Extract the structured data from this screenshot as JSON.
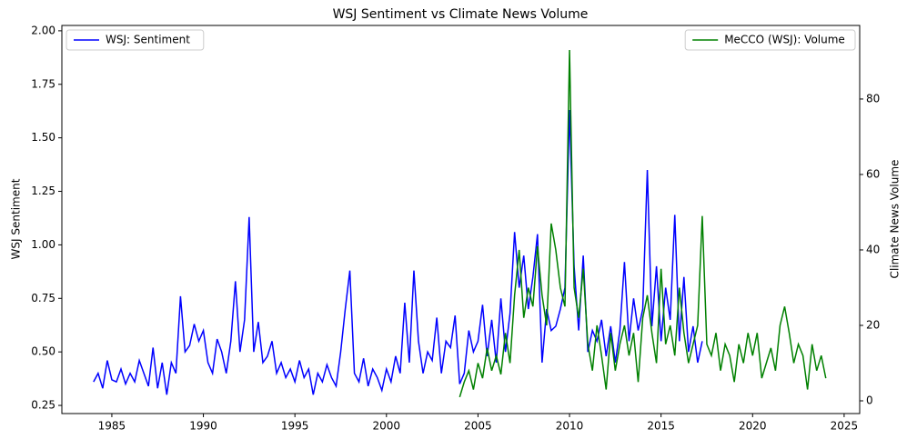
{
  "chart_data": {
    "type": "line",
    "title": "WSJ Sentiment vs Climate News Volume",
    "ylabel": "WSJ Sentiment",
    "y2label": "Climate News Volume",
    "xlim": [
      1982.27,
      2025.85
    ],
    "xticks": [
      1985,
      1990,
      1995,
      2000,
      2005,
      2010,
      2015,
      2020,
      2025
    ],
    "ylim": [
      0.212,
      2.025
    ],
    "yticks": [
      {
        "value": 0.25,
        "label": "0.25"
      },
      {
        "value": 0.5,
        "label": "0.50"
      },
      {
        "value": 0.75,
        "label": "0.75"
      },
      {
        "value": 1.0,
        "label": "1.00"
      },
      {
        "value": 1.25,
        "label": "1.25"
      },
      {
        "value": 1.5,
        "label": "1.50"
      },
      {
        "value": 1.75,
        "label": "1.75"
      },
      {
        "value": 2.0,
        "label": "2.00"
      }
    ],
    "y2lim": [
      -3.37,
      99.5
    ],
    "y2ticks": [
      0,
      20,
      40,
      60,
      80
    ],
    "legend": [
      "upper left",
      "upper right"
    ],
    "series": [
      {
        "name": "WSJ: Sentiment",
        "color": "#0000ff",
        "axis": "y",
        "x": [
          1984,
          1984.25,
          1984.5,
          1984.75,
          1985,
          1985.25,
          1985.5,
          1985.75,
          1986,
          1986.25,
          1986.5,
          1986.75,
          1987,
          1987.25,
          1987.5,
          1987.75,
          1988,
          1988.25,
          1988.5,
          1988.75,
          1989,
          1989.25,
          1989.5,
          1989.75,
          1990,
          1990.25,
          1990.5,
          1990.75,
          1991,
          1991.25,
          1991.5,
          1991.75,
          1992,
          1992.25,
          1992.5,
          1992.75,
          1993,
          1993.25,
          1993.5,
          1993.75,
          1994,
          1994.25,
          1994.5,
          1994.75,
          1995,
          1995.25,
          1995.5,
          1995.75,
          1996,
          1996.25,
          1996.5,
          1996.75,
          1997,
          1997.25,
          1997.5,
          1997.75,
          1998,
          1998.25,
          1998.5,
          1998.75,
          1999,
          1999.25,
          1999.5,
          1999.75,
          2000,
          2000.25,
          2000.5,
          2000.75,
          2001,
          2001.25,
          2001.5,
          2001.75,
          2002,
          2002.25,
          2002.5,
          2002.75,
          2003,
          2003.25,
          2003.5,
          2003.75,
          2004,
          2004.25,
          2004.5,
          2004.75,
          2005,
          2005.25,
          2005.5,
          2005.75,
          2006,
          2006.25,
          2006.5,
          2006.75,
          2007,
          2007.25,
          2007.5,
          2007.75,
          2008,
          2008.25,
          2008.5,
          2008.75,
          2009,
          2009.25,
          2009.5,
          2009.75,
          2010,
          2010.25,
          2010.5,
          2010.75,
          2011,
          2011.25,
          2011.5,
          2011.75,
          2012,
          2012.25,
          2012.5,
          2012.75,
          2013,
          2013.25,
          2013.5,
          2013.75,
          2014,
          2014.25,
          2014.5,
          2014.75,
          2015,
          2015.25,
          2015.5,
          2015.75,
          2016,
          2016.25,
          2016.5,
          2016.75,
          2017,
          2017.25
        ],
        "values": [
          0.36,
          0.4,
          0.33,
          0.46,
          0.37,
          0.36,
          0.42,
          0.35,
          0.4,
          0.36,
          0.46,
          0.4,
          0.34,
          0.52,
          0.33,
          0.45,
          0.3,
          0.45,
          0.4,
          0.76,
          0.5,
          0.53,
          0.63,
          0.55,
          0.6,
          0.45,
          0.4,
          0.56,
          0.5,
          0.4,
          0.55,
          0.83,
          0.5,
          0.65,
          1.13,
          0.5,
          0.64,
          0.45,
          0.48,
          0.55,
          0.4,
          0.45,
          0.38,
          0.42,
          0.36,
          0.46,
          0.38,
          0.42,
          0.3,
          0.4,
          0.36,
          0.44,
          0.38,
          0.34,
          0.5,
          0.7,
          0.88,
          0.4,
          0.36,
          0.47,
          0.34,
          0.42,
          0.38,
          0.32,
          0.42,
          0.36,
          0.48,
          0.4,
          0.73,
          0.45,
          0.88,
          0.55,
          0.4,
          0.5,
          0.46,
          0.66,
          0.4,
          0.55,
          0.52,
          0.67,
          0.35,
          0.4,
          0.6,
          0.5,
          0.55,
          0.72,
          0.48,
          0.65,
          0.45,
          0.75,
          0.5,
          0.68,
          1.06,
          0.8,
          0.95,
          0.7,
          0.85,
          1.05,
          0.45,
          0.7,
          0.6,
          0.62,
          0.7,
          0.8,
          1.63,
          0.9,
          0.6,
          0.95,
          0.5,
          0.6,
          0.55,
          0.65,
          0.48,
          0.62,
          0.45,
          0.6,
          0.92,
          0.55,
          0.75,
          0.6,
          0.7,
          1.35,
          0.62,
          0.9,
          0.55,
          0.8,
          0.65,
          1.14,
          0.55,
          0.85,
          0.5,
          0.62,
          0.45,
          0.55
        ]
      },
      {
        "name": "MeCCO (WSJ): Volume",
        "color": "#008000",
        "axis": "y2",
        "x": [
          2004,
          2004.25,
          2004.5,
          2004.75,
          2005,
          2005.25,
          2005.5,
          2005.75,
          2006,
          2006.25,
          2006.5,
          2006.75,
          2007,
          2007.25,
          2007.5,
          2007.75,
          2008,
          2008.25,
          2008.5,
          2008.75,
          2009,
          2009.25,
          2009.5,
          2009.75,
          2010,
          2010.25,
          2010.5,
          2010.75,
          2011,
          2011.25,
          2011.5,
          2011.75,
          2012,
          2012.25,
          2012.5,
          2012.75,
          2013,
          2013.25,
          2013.5,
          2013.75,
          2014,
          2014.25,
          2014.5,
          2014.75,
          2015,
          2015.25,
          2015.5,
          2015.75,
          2016,
          2016.25,
          2016.5,
          2016.75,
          2017,
          2017.25,
          2017.5,
          2017.75,
          2018,
          2018.25,
          2018.5,
          2018.75,
          2019,
          2019.25,
          2019.5,
          2019.75,
          2020,
          2020.25,
          2020.5,
          2020.75,
          2021,
          2021.25,
          2021.5,
          2021.75,
          2022,
          2022.25,
          2022.5,
          2022.75,
          2023,
          2023.25,
          2023.5,
          2023.75,
          2024
        ],
        "values": [
          1,
          5,
          8,
          3,
          10,
          6,
          14,
          8,
          12,
          7,
          18,
          10,
          28,
          40,
          22,
          30,
          25,
          41,
          28,
          20,
          47,
          40,
          30,
          25,
          93,
          30,
          22,
          35,
          15,
          8,
          20,
          12,
          3,
          18,
          8,
          15,
          20,
          12,
          18,
          5,
          22,
          28,
          18,
          10,
          35,
          15,
          20,
          12,
          30,
          18,
          10,
          15,
          20,
          49,
          15,
          12,
          18,
          8,
          15,
          12,
          5,
          15,
          10,
          18,
          12,
          18,
          6,
          10,
          14,
          8,
          20,
          25,
          18,
          10,
          15,
          12,
          3,
          15,
          8,
          12,
          6
        ]
      }
    ]
  }
}
